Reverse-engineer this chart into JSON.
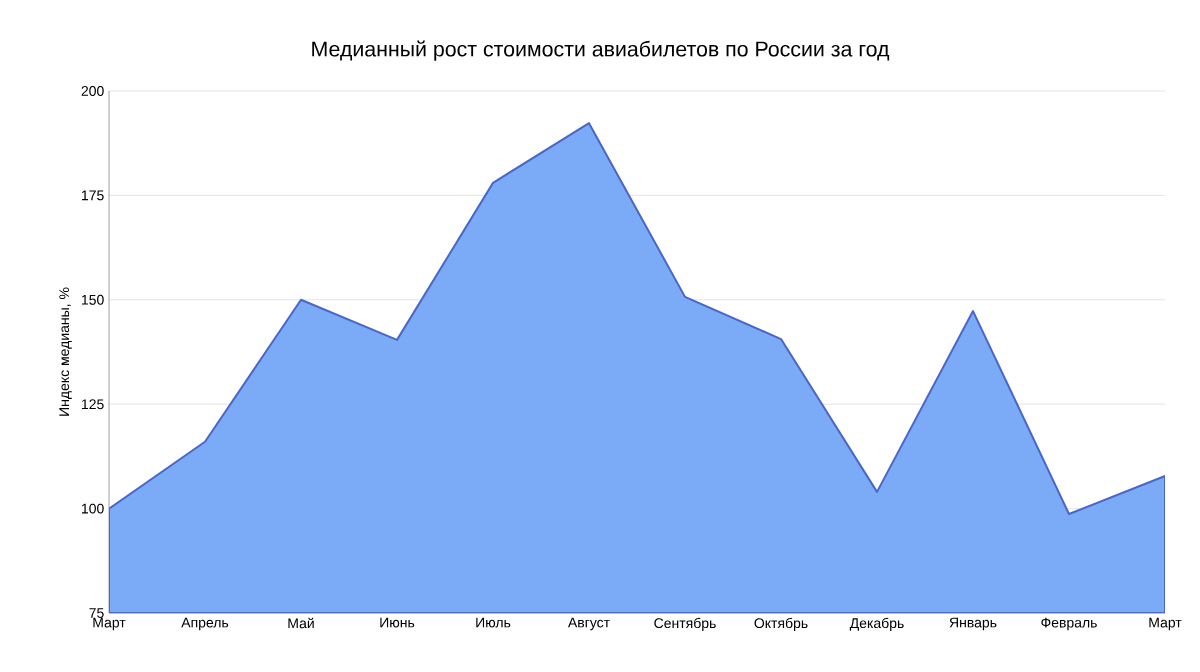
{
  "chart_data": {
    "type": "area",
    "title": "Медианный рост стоимости авиабилетов по России за год",
    "ylabel": "Индекс медианы, %",
    "categories": [
      "Март",
      "Апрель",
      "Май",
      "Июнь",
      "Июль",
      "Август",
      "Сентябрь",
      "Октябрь",
      "Декабрь",
      "Январь",
      "Февраль",
      "Март"
    ],
    "series": [
      {
        "color": "#7baaf7",
        "values": [
          100,
          116,
          150,
          140.4,
          178,
          192.3,
          150.7,
          140.6,
          104,
          147.3,
          98.7,
          107.8
        ]
      }
    ],
    "ylim": [
      75,
      200
    ],
    "yticks": [
      75,
      100,
      125,
      150,
      175,
      200
    ],
    "grid": "y"
  }
}
